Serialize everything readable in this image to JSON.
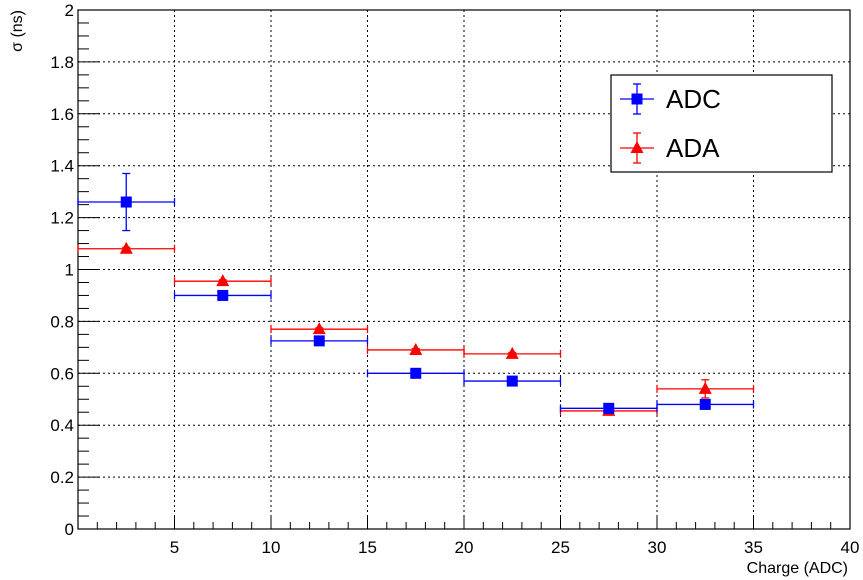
{
  "chart_data": {
    "type": "scatter",
    "xlabel": "Charge (ADC)",
    "ylabel": "σ (ns)",
    "xlim": [
      0,
      40
    ],
    "ylim": [
      0,
      2
    ],
    "x_ticks": [
      5,
      10,
      15,
      20,
      25,
      30,
      35,
      40
    ],
    "y_ticks": [
      0,
      0.2,
      0.4,
      0.6,
      0.8,
      1,
      1.2,
      1.4,
      1.6,
      1.8,
      2
    ],
    "grid": true,
    "legend_position": "top-right",
    "series": [
      {
        "name": "ADC",
        "color": "#0000ff",
        "marker": "square",
        "x": [
          2.5,
          7.5,
          12.5,
          17.5,
          22.5,
          27.5,
          32.5
        ],
        "x_err": [
          2.5,
          2.5,
          2.5,
          2.5,
          2.5,
          2.5,
          2.5
        ],
        "y": [
          1.26,
          0.9,
          0.725,
          0.6,
          0.57,
          0.465,
          0.48
        ],
        "y_err": [
          0.11,
          0.01,
          0.01,
          0.01,
          0.01,
          0.01,
          0.015
        ]
      },
      {
        "name": "ADA",
        "color": "#ff0000",
        "marker": "triangle",
        "x": [
          2.5,
          7.5,
          12.5,
          17.5,
          22.5,
          27.5,
          32.5
        ],
        "x_err": [
          2.5,
          2.5,
          2.5,
          2.5,
          2.5,
          2.5,
          2.5
        ],
        "y": [
          1.08,
          0.955,
          0.77,
          0.69,
          0.675,
          0.455,
          0.54
        ],
        "y_err": [
          0.005,
          0.005,
          0.005,
          0.005,
          0.005,
          0.01,
          0.035
        ]
      }
    ]
  }
}
